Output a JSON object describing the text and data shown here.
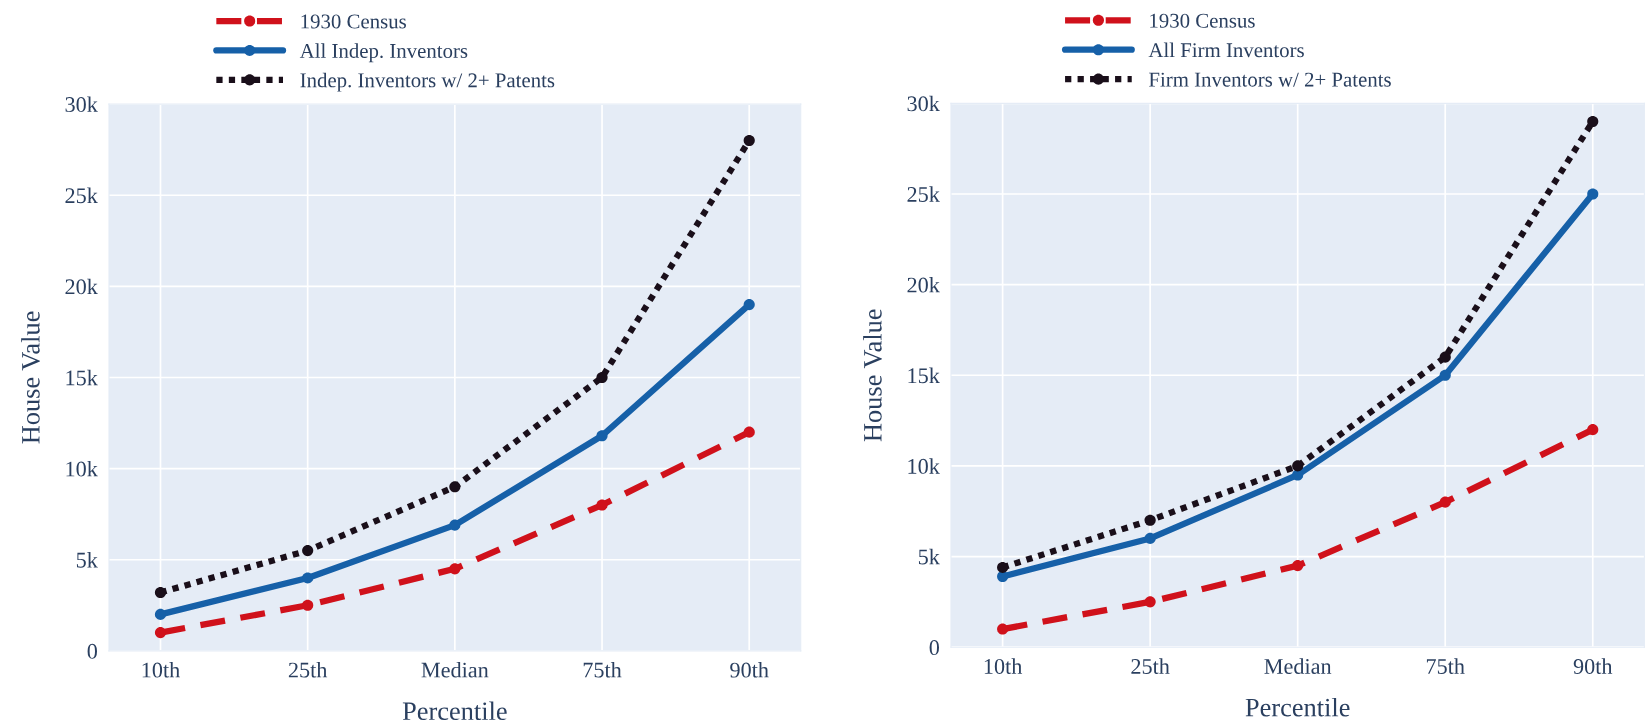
{
  "chart_data": [
    {
      "type": "line",
      "xlabel": "Percentile",
      "ylabel": "House Value",
      "categories": [
        "10th",
        "25th",
        "Median",
        "75th",
        "90th"
      ],
      "ylim": [
        0,
        30000
      ],
      "yticks": [
        {
          "value": 0,
          "label": "0"
        },
        {
          "value": 5000,
          "label": "5k"
        },
        {
          "value": 10000,
          "label": "10k"
        },
        {
          "value": 15000,
          "label": "15k"
        },
        {
          "value": 20000,
          "label": "20k"
        },
        {
          "value": 25000,
          "label": "25k"
        },
        {
          "value": 30000,
          "label": "30k"
        }
      ],
      "grid": true,
      "legend": "top",
      "marker": "circle",
      "series": [
        {
          "name": "1930 Census",
          "color": "#d0111b",
          "line_style": "dashed",
          "values": [
            1000,
            2500,
            4500,
            8000,
            12000
          ]
        },
        {
          "name": "All Indep. Inventors",
          "color": "#1660a8",
          "line_style": "solid",
          "values": [
            2000,
            4000,
            6900,
            11800,
            19000
          ]
        },
        {
          "name": "Indep. Inventors w/ 2+ Patents",
          "color": "#1a0f1a",
          "line_style": "dotted",
          "values": [
            3200,
            5500,
            9000,
            15000,
            28000
          ]
        }
      ]
    },
    {
      "type": "line",
      "xlabel": "Percentile",
      "ylabel": "House Value",
      "categories": [
        "10th",
        "25th",
        "Median",
        "75th",
        "90th"
      ],
      "ylim": [
        0,
        30000
      ],
      "yticks": [
        {
          "value": 0,
          "label": "0"
        },
        {
          "value": 5000,
          "label": "5k"
        },
        {
          "value": 10000,
          "label": "10k"
        },
        {
          "value": 15000,
          "label": "15k"
        },
        {
          "value": 20000,
          "label": "20k"
        },
        {
          "value": 25000,
          "label": "25k"
        },
        {
          "value": 30000,
          "label": "30k"
        }
      ],
      "grid": true,
      "legend": "top",
      "marker": "circle",
      "series": [
        {
          "name": "1930 Census",
          "color": "#d0111b",
          "line_style": "dashed",
          "values": [
            1000,
            2500,
            4500,
            8000,
            12000
          ]
        },
        {
          "name": "All Firm Inventors",
          "color": "#1660a8",
          "line_style": "solid",
          "values": [
            3900,
            6000,
            9500,
            15000,
            25000
          ]
        },
        {
          "name": "Firm Inventors w/ 2+ Patents",
          "color": "#1a0f1a",
          "line_style": "dotted",
          "values": [
            4400,
            7000,
            10000,
            16000,
            29000
          ]
        }
      ]
    }
  ]
}
